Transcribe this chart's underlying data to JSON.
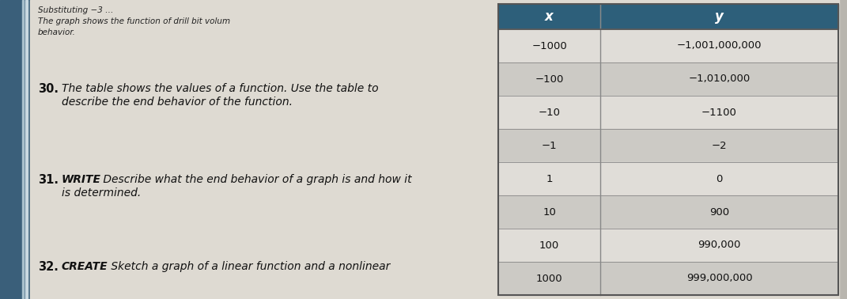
{
  "table": {
    "header_bg": "#2d5f7a",
    "header_text_color": "white",
    "row_bg_light": "#e0ddd8",
    "row_bg_dark": "#cccac5",
    "border_color": "#888888",
    "rows": [
      [
        "−1000",
        "−1,001,000,000"
      ],
      [
        "−100",
        "−1,010,000"
      ],
      [
        "−10",
        "−1100"
      ],
      [
        "−1",
        "−2"
      ],
      [
        "1",
        "0"
      ],
      [
        "10",
        "900"
      ],
      [
        "100",
        "990,000"
      ],
      [
        "1000",
        "999,000,000"
      ]
    ]
  },
  "spine_color": "#3a5f7a",
  "page_bg": "#dedad2",
  "outer_bg": "#b8b5ae",
  "top_text": "Substituting −3 …",
  "top_text2a": "The graph shows the function of drill bit volum",
  "top_text2b": "behavior.",
  "item30_num": "30.",
  "item30_text1": "The table shows the values of a function. Use the table to",
  "item30_text2": "describe the end behavior of the function.",
  "item31_num": "31.",
  "item31_kw": "WRITE",
  "item31_text1": " Describe what the end behavior of a graph is and how it",
  "item31_text2": "is determined.",
  "item32_num": "32.",
  "item32_kw": "CREATE",
  "item32_text": " Sketch a graph of a linear function and a nonlinear"
}
